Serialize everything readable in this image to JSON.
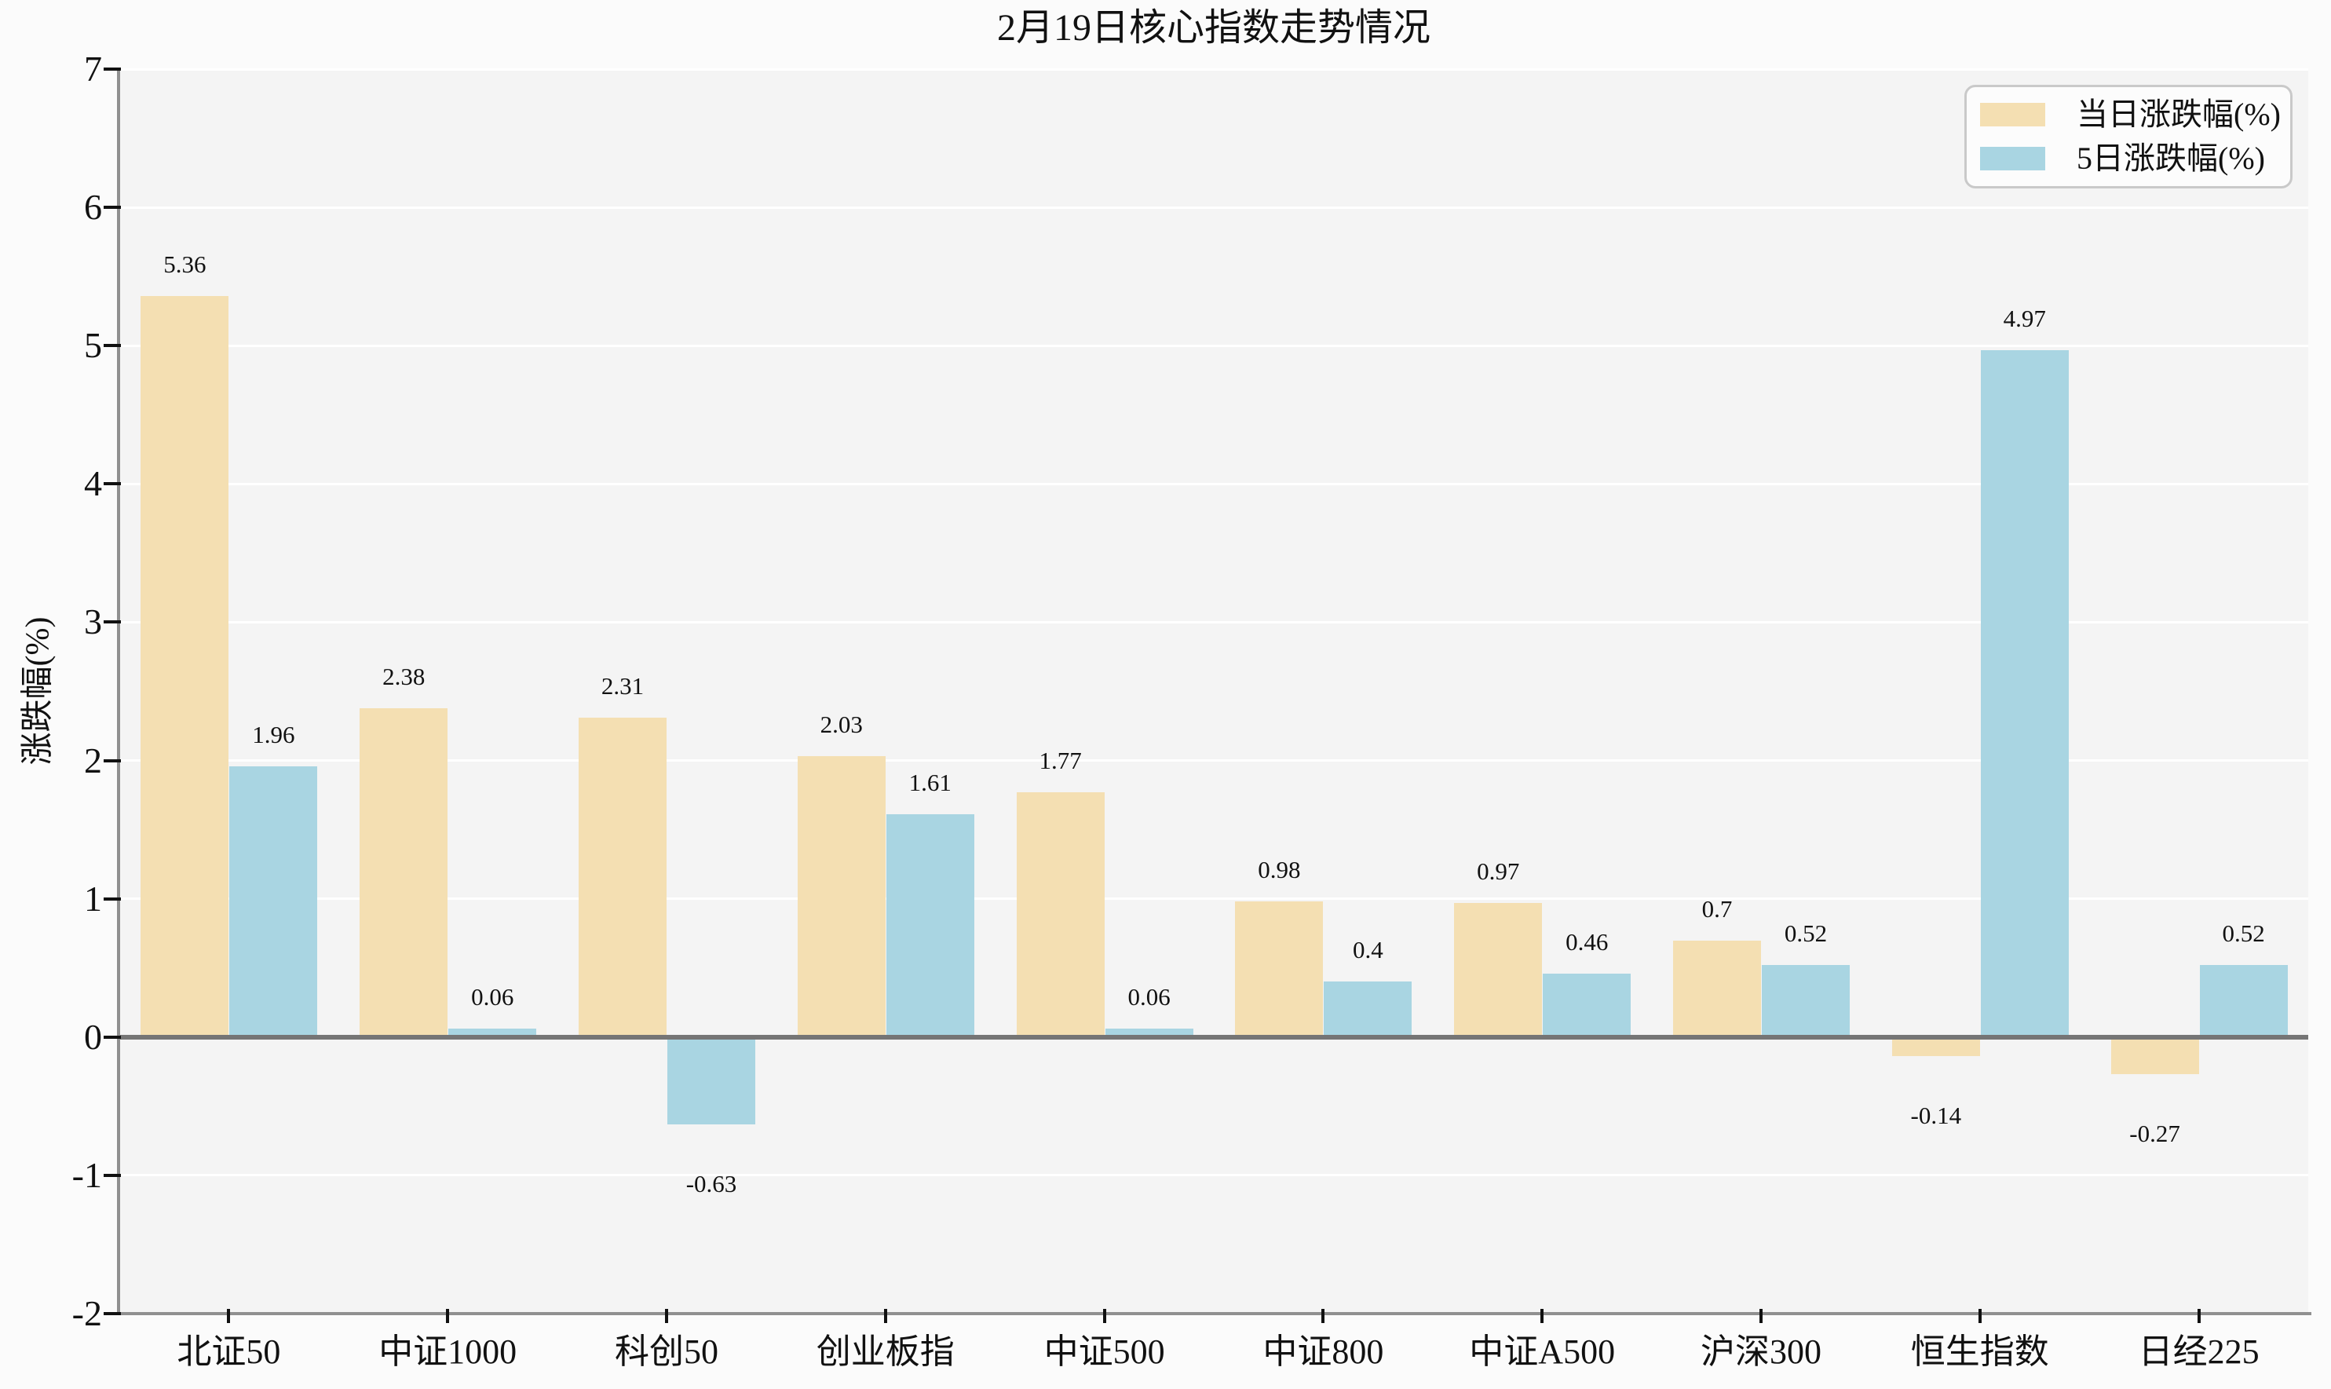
{
  "title": "2月19日核心指数走势情况",
  "y_axis": {
    "label": "涨跌幅(%)"
  },
  "legend": {
    "items": [
      {
        "label": "当日涨跌幅(%)"
      },
      {
        "label": "5日涨跌幅(%)"
      }
    ]
  },
  "colors": {
    "daily_bar": "#F4DFB2",
    "five_day_bar": "#A9D5E2",
    "plot_background": "#F4F4F4",
    "figure_background": "#FBFBFB",
    "gridline": "#FFFFFF",
    "zero_line": "#757575",
    "spine": "#909090",
    "tick": "#111111",
    "text": "#111111"
  },
  "chart_data": {
    "type": "bar",
    "title": "2月19日核心指数走势情况",
    "xlabel": "",
    "ylabel": "涨跌幅(%)",
    "categories": [
      "北证50",
      "中证1000",
      "科创50",
      "创业板指",
      "中证500",
      "中证800",
      "中证A500",
      "沪深300",
      "恒生指数",
      "日经225"
    ],
    "series": [
      {
        "key": "daily",
        "name": "当日涨跌幅(%)",
        "color": "#F4DFB2",
        "values": [
          5.36,
          2.38,
          2.31,
          2.03,
          1.77,
          0.98,
          0.97,
          0.7,
          -0.14,
          -0.27
        ]
      },
      {
        "key": "five_day",
        "name": "5日涨跌幅(%)",
        "color": "#A9D5E2",
        "values": [
          1.96,
          0.06,
          -0.63,
          1.61,
          0.06,
          0.4,
          0.46,
          0.52,
          4.97,
          0.52
        ]
      }
    ],
    "ylim": [
      -2,
      7
    ],
    "yticks": [
      -2,
      -1,
      0,
      1,
      2,
      3,
      4,
      5,
      6,
      7
    ],
    "grid": true,
    "bar_value_labels": true,
    "legend_position": "upper right"
  }
}
